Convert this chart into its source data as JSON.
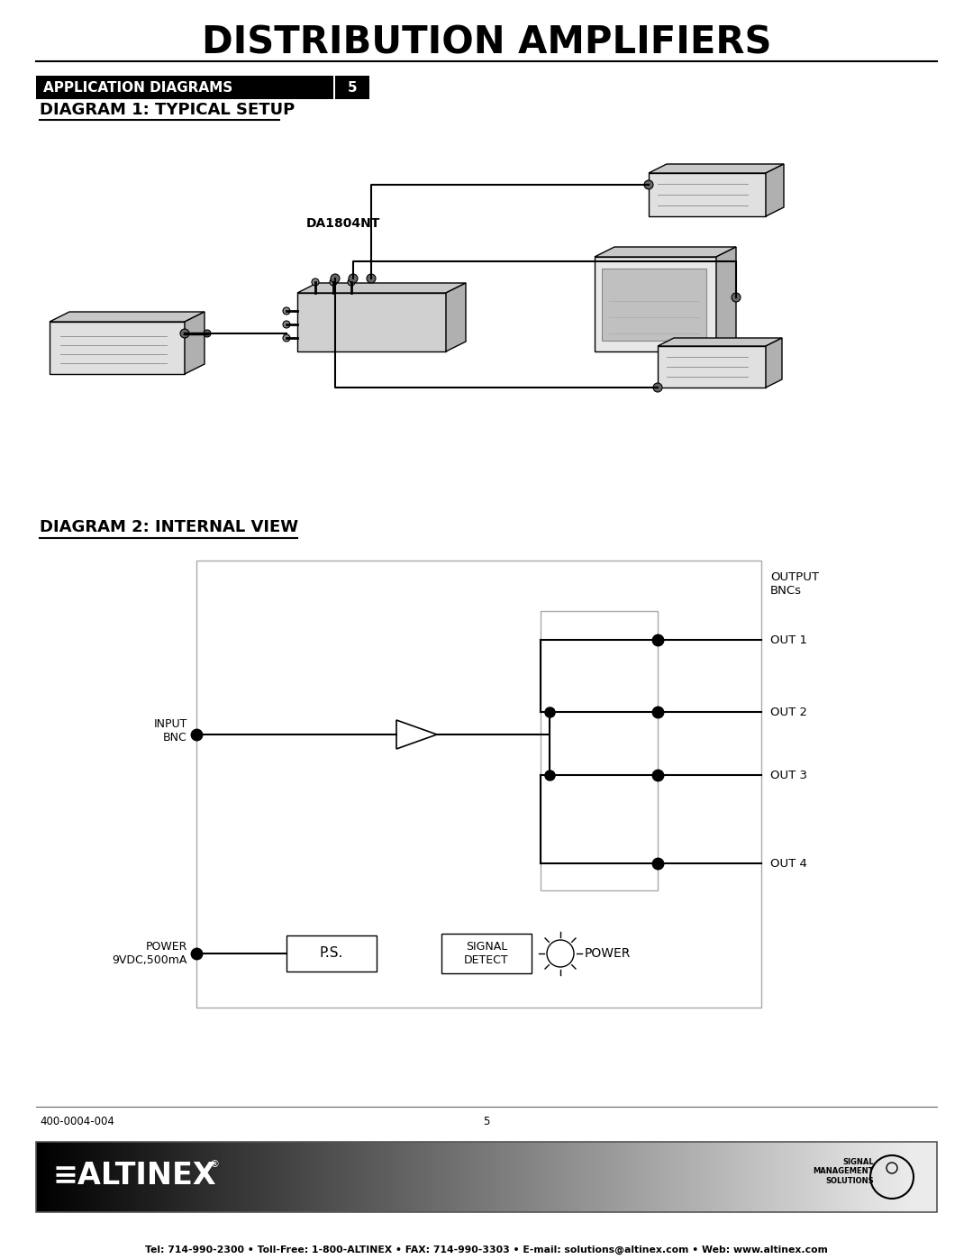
{
  "title": "DISTRIBUTION AMPLIFIERS",
  "section_label": "APPLICATION DIAGRAMS",
  "section_number": "5",
  "diag1_title": "DIAGRAM 1: TYPICAL SETUP",
  "diag2_title": "DIAGRAM 2: INTERNAL VIEW",
  "da_label": "DA1804NT",
  "footer_left": "400-0004-004",
  "footer_center": "5",
  "footer_contact": "Tel: 714-990-2300 • Toll-Free: 1-800-ALTINEX • FAX: 714-990-3303 • E-mail: solutions@altinex.com • Web: www.altinex.com",
  "out_labels": [
    "OUT 1",
    "OUT 2",
    "OUT 3",
    "OUT 4"
  ],
  "ps_label": "P.S.",
  "power_led_label": "POWER",
  "bg_color": "#ffffff",
  "black": "#000000"
}
